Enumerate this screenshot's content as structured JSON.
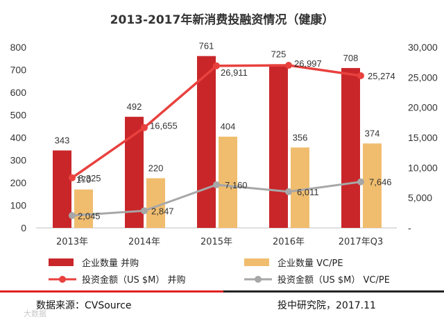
{
  "chart_data": {
    "type": "bar",
    "title": "2013-2017年新消费投融资情况（健康）",
    "categories": [
      "2013年",
      "2014年",
      "2015年",
      "2016年",
      "2017年Q3"
    ],
    "left_axis": {
      "min": 0,
      "max": 800,
      "step": 100,
      "ticks": [
        "0",
        "100",
        "200",
        "300",
        "400",
        "500",
        "600",
        "700",
        "800"
      ]
    },
    "right_axis": {
      "min": 0,
      "max": 30000,
      "step": 5000,
      "ticks": [
        "-",
        "5,000",
        "10,000",
        "15,000",
        "20,000",
        "25,000",
        "30,000"
      ]
    },
    "bar_series": [
      {
        "name": "企业数量 并购",
        "color": "#c9262a",
        "values": [
          343,
          492,
          761,
          725,
          708
        ],
        "labels": [
          "343",
          "492",
          "761",
          "725",
          "708"
        ]
      },
      {
        "name": "企业数量 VC/PE",
        "color": "#f0bd6e",
        "values": [
          170,
          220,
          404,
          356,
          374
        ],
        "labels": [
          "170",
          "220",
          "404",
          "356",
          "374"
        ]
      }
    ],
    "line_series": [
      {
        "name": "投资金额（US $M） 并购",
        "color": "#e8413e",
        "values": [
          8325,
          16655,
          26911,
          26997,
          25274
        ],
        "labels": [
          "8,325",
          "16,655",
          "26,911",
          "26,997",
          "25,274"
        ]
      },
      {
        "name": "投资金额（US $M） VC/PE",
        "color": "#a7a7a7",
        "values": [
          2045,
          2847,
          7160,
          6011,
          7646
        ],
        "labels": [
          "2,045",
          "2,847",
          "7,160",
          "6,011",
          "7,646"
        ]
      }
    ]
  },
  "footer": {
    "source": "数据来源：CVSource",
    "credit": "投中研究院，2017.11",
    "red_color": "#e02020",
    "dark_color": "#222222"
  },
  "watermark": "大数据"
}
